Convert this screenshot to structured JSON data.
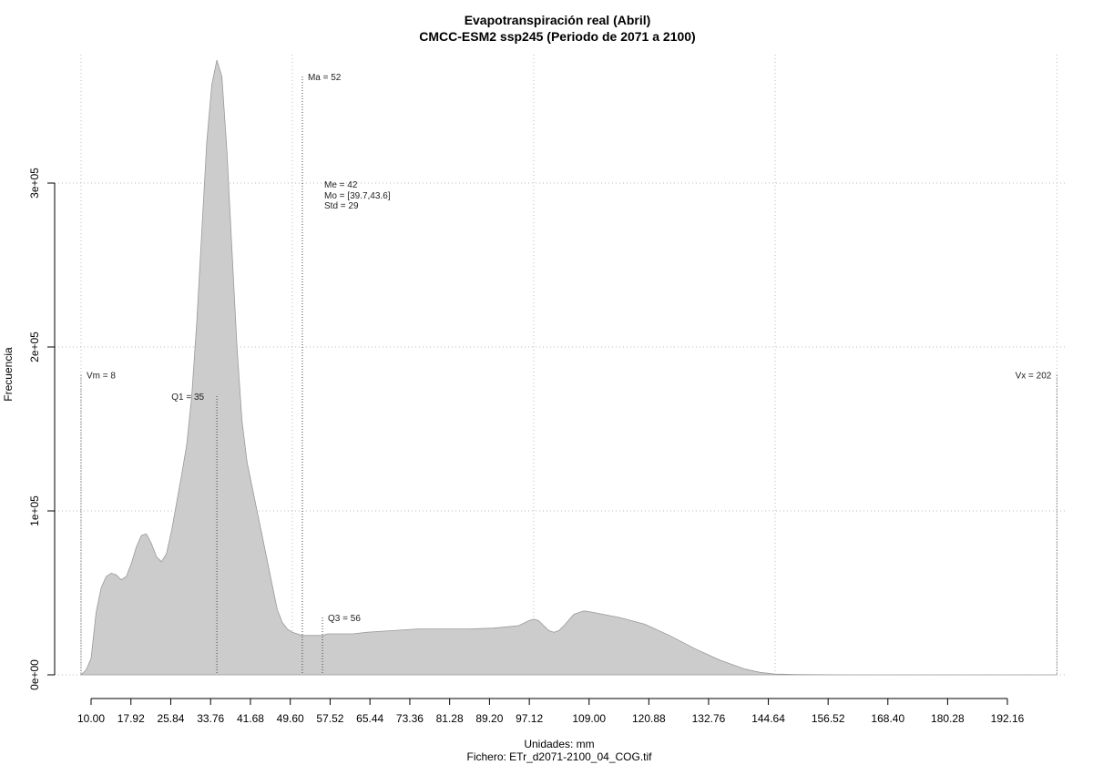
{
  "chart_data": {
    "type": "area",
    "title": "Evapotranspiración real (Abril)",
    "subtitle": "CMCC-ESM2 ssp245 (Periodo de 2071 a 2100)",
    "xlabel": "Unidades: mm",
    "caption": "Fichero: ETr_d2071-2100_04_COG.tif",
    "ylabel": "Frecuencia",
    "xlim": [
      8,
      202
    ],
    "ylim": [
      0,
      375000
    ],
    "x_ticks": [
      10.0,
      17.92,
      25.84,
      33.76,
      41.68,
      49.6,
      57.52,
      65.44,
      73.36,
      81.28,
      89.2,
      97.12,
      109.0,
      120.88,
      132.76,
      144.64,
      156.52,
      168.4,
      180.28,
      192.16
    ],
    "x_tick_labels": [
      "10.00",
      "17.92",
      "25.84",
      "33.76",
      "41.68",
      "49.60",
      "57.52",
      "65.44",
      "73.36",
      "81.28",
      "89.20",
      "97.12",
      "109.00",
      "120.88",
      "132.76",
      "144.64",
      "156.52",
      "168.40",
      "180.28",
      "192.16"
    ],
    "y_ticks": [
      0,
      100000,
      200000,
      300000
    ],
    "y_tick_labels": [
      "0e+00",
      "1e+05",
      "2e+05",
      "3e+05"
    ],
    "grid": true,
    "fill_color": "#cccccc",
    "stroke_color": "#999999",
    "series": [
      {
        "x": [
          8,
          9,
          10,
          11,
          12,
          13,
          14,
          15,
          16,
          17,
          18,
          19,
          20,
          21,
          22,
          23,
          24,
          25,
          26,
          27,
          28,
          29,
          30,
          31,
          32,
          33,
          34,
          35,
          36,
          37,
          38,
          39,
          40,
          41,
          42,
          43,
          44,
          45,
          46,
          47,
          48,
          49,
          50,
          51,
          52,
          53,
          54,
          55,
          56,
          57,
          58,
          60,
          62,
          65,
          70,
          75,
          80,
          85,
          90,
          95,
          97,
          98,
          99,
          100,
          101,
          102,
          103,
          104,
          106,
          108,
          110,
          115,
          120,
          125,
          130,
          135,
          140,
          143,
          146,
          150,
          160,
          180,
          200,
          202
        ],
        "y": [
          0,
          3000,
          10000,
          38000,
          53000,
          60000,
          62000,
          61000,
          58000,
          60000,
          68000,
          78000,
          85000,
          86000,
          80000,
          72000,
          69000,
          74000,
          88000,
          105000,
          122000,
          140000,
          170000,
          215000,
          270000,
          325000,
          360000,
          375000,
          365000,
          320000,
          260000,
          200000,
          155000,
          130000,
          115000,
          100000,
          85000,
          70000,
          55000,
          40000,
          32000,
          28000,
          26000,
          25000,
          24000,
          24000,
          24000,
          24000,
          24000,
          25000,
          25000,
          25000,
          25000,
          26000,
          27000,
          28000,
          28000,
          28000,
          28500,
          30000,
          33000,
          34000,
          33000,
          30000,
          27000,
          26000,
          27000,
          30000,
          37000,
          39000,
          38000,
          35000,
          31000,
          24000,
          16000,
          9000,
          3500,
          1500,
          500,
          200,
          0,
          0,
          0,
          0
        ]
      }
    ],
    "vlines": [
      {
        "label": "Vm = 8",
        "x": 8,
        "y_top": 183000
      },
      {
        "label": "Q1 = 35",
        "x": 35,
        "y_top": 170000
      },
      {
        "label": "Ma = 52",
        "x": 52,
        "y_top": 365000
      },
      {
        "label": "Q3 = 56",
        "x": 56,
        "y_top": 35000
      },
      {
        "label": "Vx = 202",
        "x": 202,
        "y_top": 183000
      }
    ],
    "stats": [
      "Me = 42",
      "Mo = [39.7,43.6]",
      "Std = 29"
    ]
  }
}
